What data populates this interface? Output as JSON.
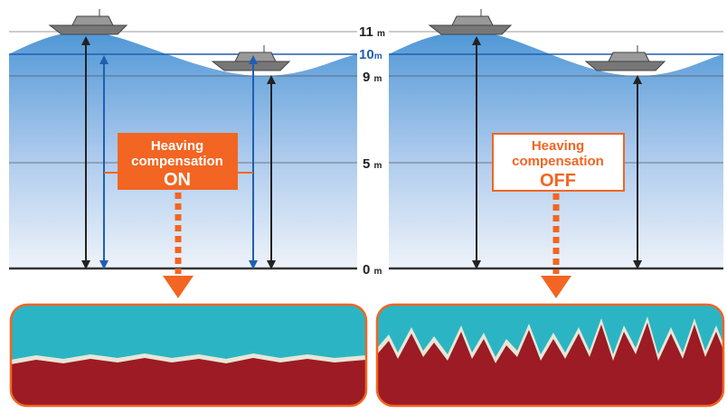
{
  "depth_scale": [
    {
      "number": "11",
      "unit": "m"
    },
    {
      "number": "10",
      "unit": "m"
    },
    {
      "number": "9",
      "unit": "m"
    },
    {
      "number": "5",
      "unit": "m"
    },
    {
      "number": "0",
      "unit": "m"
    }
  ],
  "panels": [
    {
      "label_line1": "Heaving",
      "label_line2": "compensation",
      "state": "ON"
    },
    {
      "label_line1": "Heaving",
      "label_line2": "compensation",
      "state": "OFF"
    }
  ]
}
